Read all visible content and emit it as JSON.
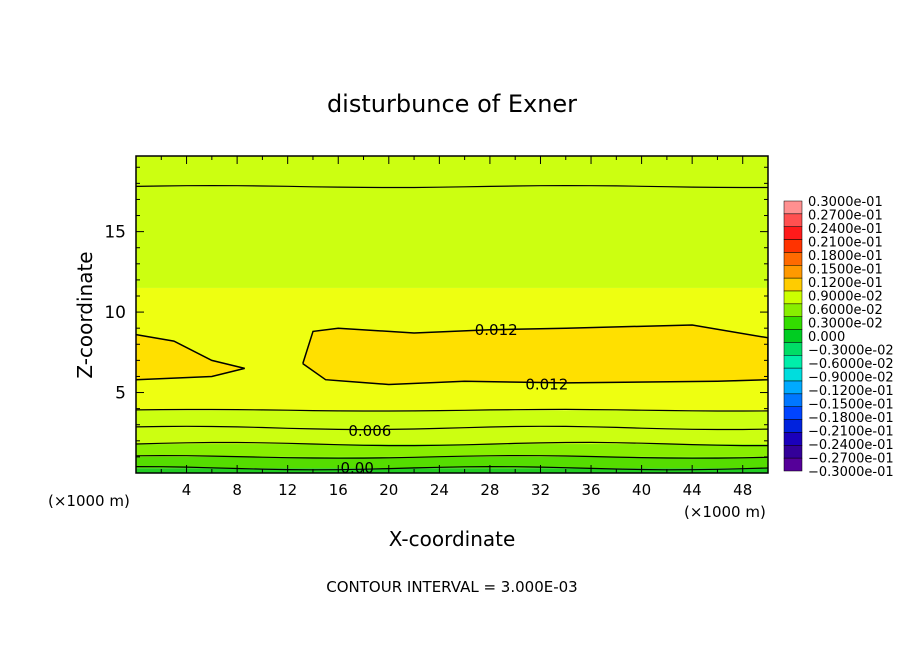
{
  "chart_data": {
    "type": "heatmap",
    "title": "disturbunce of Exner",
    "xlabel": "X-coordinate",
    "ylabel": "Z-coordinate",
    "x_unit": "(×1000 m)",
    "y_unit": "(×1000 m)",
    "xlim": [
      0,
      50
    ],
    "ylim": [
      0,
      19.7
    ],
    "x_ticks": [
      4,
      8,
      12,
      16,
      20,
      24,
      28,
      32,
      36,
      40,
      44,
      48
    ],
    "y_ticks": [
      5,
      10,
      15
    ],
    "footer": "CONTOUR INTERVAL = 3.000E-03",
    "contour_interval": 0.003,
    "contour_labels": [
      {
        "text": "0.012",
        "x": 28.5,
        "z": 8.9
      },
      {
        "text": "0.012",
        "x": 32.5,
        "z": 5.5
      },
      {
        "text": "0.006",
        "x": 18.5,
        "z": 2.6
      },
      {
        "text": "0.00",
        "x": 17.5,
        "z": 0.3
      }
    ],
    "layers": [
      {
        "z_top": 0.3,
        "value": 0.0
      },
      {
        "z_top": 1.0,
        "value": 0.003
      },
      {
        "z_top": 1.8,
        "value": 0.006
      },
      {
        "z_top": 2.8,
        "value": 0.009
      },
      {
        "z_top": 3.9,
        "value": 0.009
      },
      {
        "z_top": 5.5,
        "value": 0.012
      },
      {
        "z_top": 11.5,
        "value": 0.012
      },
      {
        "z_top": 17.8,
        "value": 0.009
      },
      {
        "z_top": 19.7,
        "value": 0.009
      }
    ],
    "colorbar": {
      "levels": [
        "0.3000e-01",
        "0.2700e-01",
        "0.2400e-01",
        "0.2100e-01",
        "0.1800e-01",
        "0.1500e-01",
        "0.1200e-01",
        "0.9000e-02",
        "0.6000e-02",
        "0.3000e-02",
        "0.000",
        "−0.3000e-02",
        "−0.6000e-02",
        "−0.9000e-02",
        "−0.1200e-01",
        "−0.1500e-01",
        "−0.1800e-01",
        "−0.2100e-01",
        "−0.2400e-01",
        "−0.2700e-01",
        "−0.3000e-01"
      ],
      "colors": [
        "#ff9090",
        "#ff5050",
        "#ff1a1a",
        "#ff3300",
        "#ff6a00",
        "#ff9900",
        "#ffcc00",
        "#ccff00",
        "#88ee00",
        "#33dd00",
        "#00cc22",
        "#00dd66",
        "#00eeaa",
        "#00dddd",
        "#00aaff",
        "#0077ff",
        "#0044ff",
        "#0022dd",
        "#1a00bb",
        "#330099",
        "#550099"
      ]
    }
  }
}
